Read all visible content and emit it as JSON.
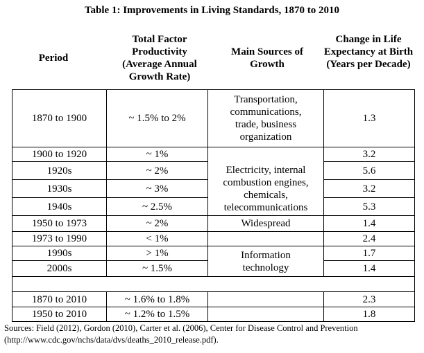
{
  "title": "Table 1: Improvements in Living Standards, 1870 to 2010",
  "headers": {
    "period": "Period",
    "tfp": "Total Factor Productivity (Average Annual Growth Rate)",
    "sources": "Main Sources of Growth",
    "life": "Change in Life Expectancy at Birth (Years per Decade)"
  },
  "rows": [
    {
      "period": "1870 to 1900",
      "tfp": "~ 1.5% to 2%",
      "life": "1.3"
    },
    {
      "period": "1900 to 1920",
      "tfp": "~ 1%",
      "life": "3.2"
    },
    {
      "period": "1920s",
      "tfp": "~ 2%",
      "life": "5.6"
    },
    {
      "period": "1930s",
      "tfp": "~ 3%",
      "life": "3.2"
    },
    {
      "period": "1940s",
      "tfp": "~ 2.5%",
      "life": "5.3"
    },
    {
      "period": "1950 to 1973",
      "tfp": "~ 2%",
      "life": "1.4"
    },
    {
      "period": "1973 to 1990",
      "tfp": "< 1%",
      "life": "2.4"
    },
    {
      "period": "1990s",
      "tfp": "> 1%",
      "life": "1.7"
    },
    {
      "period": "2000s",
      "tfp": "~ 1.5%",
      "life": "1.4"
    }
  ],
  "growth_sources": [
    "Transportation, communications, trade, business organization",
    "Electricity, internal combustion engines, chemicals, telecommunications",
    "Widespread",
    "Information technology"
  ],
  "summary_rows": [
    {
      "period": "1870 to 2010",
      "tfp": "~ 1.6% to 1.8%",
      "life": "2.3"
    },
    {
      "period": "1950 to 2010",
      "tfp": "~ 1.2% to 1.5%",
      "life": "1.8"
    }
  ],
  "sources_note": {
    "line1": "Sources: Field (2012), Gordon (2010), Carter et al. (2006), Center for Disease Control and Prevention",
    "line2": "(http://www.cdc.gov/nchs/data/dvs/deaths_2010_release.pdf)."
  }
}
